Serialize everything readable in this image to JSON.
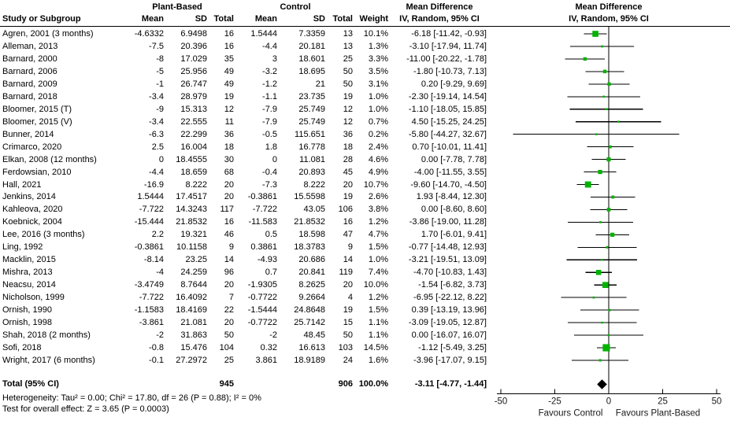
{
  "header": {
    "group1": "Plant-Based",
    "group2": "Control",
    "study_col": "Study or Subgroup",
    "mean_col": "Mean",
    "sd_col": "SD",
    "total_col": "Total",
    "weight_col": "Weight",
    "md_table_title": "Mean Difference",
    "md_table_sub": "IV, Random, 95% CI",
    "md_plot_title": "Mean Difference",
    "md_plot_sub": "IV, Random, 95% CI"
  },
  "chart_data": {
    "type": "forest_plot",
    "effect_measure": "Mean Difference, IV, Random, 95% CI",
    "axis": {
      "min": -50,
      "max": 50,
      "ticks": [
        -50,
        -25,
        0,
        25,
        50
      ],
      "tick_labels": [
        "-50",
        "-25",
        "0",
        "25",
        "50"
      ]
    },
    "favours_left": "Favours Control",
    "favours_right": "Favours Plant-Based",
    "marker_color": "#00B300",
    "line_color": "#000000",
    "diamond_color": "#000000",
    "studies": [
      {
        "name": "Agren, 2001 (3 months)",
        "m1": "-4.6332",
        "sd1": "6.9498",
        "n1": "16",
        "m2": "1.5444",
        "sd2": "7.3359",
        "n2": "13",
        "weight_label": "10.1%",
        "weight": 10.1,
        "md": -6.18,
        "lo": -11.42,
        "hi": -0.93,
        "ci_label": "-6.18 [-11.42, -0.93]"
      },
      {
        "name": "Alleman, 2013",
        "m1": "-7.5",
        "sd1": "20.396",
        "n1": "16",
        "m2": "-4.4",
        "sd2": "20.181",
        "n2": "13",
        "weight_label": "1.3%",
        "weight": 1.3,
        "md": -3.1,
        "lo": -17.94,
        "hi": 11.74,
        "ci_label": "-3.10 [-17.94, 11.74]"
      },
      {
        "name": "Barnard, 2000",
        "m1": "-8",
        "sd1": "17.029",
        "n1": "35",
        "m2": "3",
        "sd2": "18.601",
        "n2": "25",
        "weight_label": "3.3%",
        "weight": 3.3,
        "md": -11.0,
        "lo": -20.22,
        "hi": -1.78,
        "ci_label": "-11.00 [-20.22, -1.78]"
      },
      {
        "name": "Barnard, 2006",
        "m1": "-5",
        "sd1": "25.956",
        "n1": "49",
        "m2": "-3.2",
        "sd2": "18.695",
        "n2": "50",
        "weight_label": "3.5%",
        "weight": 3.5,
        "md": -1.8,
        "lo": -10.73,
        "hi": 7.13,
        "ci_label": "-1.80 [-10.73, 7.13]"
      },
      {
        "name": "Barnard, 2009",
        "m1": "-1",
        "sd1": "26.747",
        "n1": "49",
        "m2": "-1.2",
        "sd2": "21",
        "n2": "50",
        "weight_label": "3.1%",
        "weight": 3.1,
        "md": 0.2,
        "lo": -9.29,
        "hi": 9.69,
        "ci_label": "0.20 [-9.29, 9.69]"
      },
      {
        "name": "Barnard, 2018",
        "m1": "-3.4",
        "sd1": "28.979",
        "n1": "19",
        "m2": "-1.1",
        "sd2": "23.735",
        "n2": "19",
        "weight_label": "1.0%",
        "weight": 1.0,
        "md": -2.3,
        "lo": -19.14,
        "hi": 14.54,
        "ci_label": "-2.30 [-19.14, 14.54]"
      },
      {
        "name": "Bloomer, 2015 (T)",
        "m1": "-9",
        "sd1": "15.313",
        "n1": "12",
        "m2": "-7.9",
        "sd2": "25.749",
        "n2": "12",
        "weight_label": "1.0%",
        "weight": 1.0,
        "md": -1.1,
        "lo": -18.05,
        "hi": 15.85,
        "ci_label": "-1.10 [-18.05, 15.85]"
      },
      {
        "name": "Bloomer, 2015 (V)",
        "m1": "-3.4",
        "sd1": "22.555",
        "n1": "11",
        "m2": "-7.9",
        "sd2": "25.749",
        "n2": "12",
        "weight_label": "0.7%",
        "weight": 0.7,
        "md": 4.5,
        "lo": -15.25,
        "hi": 24.25,
        "ci_label": "4.50 [-15.25, 24.25]"
      },
      {
        "name": "Bunner, 2014",
        "m1": "-6.3",
        "sd1": "22.299",
        "n1": "36",
        "m2": "-0.5",
        "sd2": "115.651",
        "n2": "36",
        "weight_label": "0.2%",
        "weight": 0.2,
        "md": -5.8,
        "lo": -44.27,
        "hi": 32.67,
        "ci_label": "-5.80 [-44.27, 32.67]"
      },
      {
        "name": "Crimarco, 2020",
        "m1": "2.5",
        "sd1": "16.004",
        "n1": "18",
        "m2": "1.8",
        "sd2": "16.778",
        "n2": "18",
        "weight_label": "2.4%",
        "weight": 2.4,
        "md": 0.7,
        "lo": -10.01,
        "hi": 11.41,
        "ci_label": "0.70 [-10.01, 11.41]"
      },
      {
        "name": "Elkan, 2008 (12 months)",
        "m1": "0",
        "sd1": "18.4555",
        "n1": "30",
        "m2": "0",
        "sd2": "11.081",
        "n2": "28",
        "weight_label": "4.6%",
        "weight": 4.6,
        "md": 0.0,
        "lo": -7.78,
        "hi": 7.78,
        "ci_label": "0.00 [-7.78, 7.78]"
      },
      {
        "name": "Ferdowsian, 2010",
        "m1": "-4.4",
        "sd1": "18.659",
        "n1": "68",
        "m2": "-0.4",
        "sd2": "20.893",
        "n2": "45",
        "weight_label": "4.9%",
        "weight": 4.9,
        "md": -4.0,
        "lo": -11.55,
        "hi": 3.55,
        "ci_label": "-4.00 [-11.55, 3.55]"
      },
      {
        "name": "Hall, 2021",
        "m1": "-16.9",
        "sd1": "8.222",
        "n1": "20",
        "m2": "-7.3",
        "sd2": "8.222",
        "n2": "20",
        "weight_label": "10.7%",
        "weight": 10.7,
        "md": -9.6,
        "lo": -14.7,
        "hi": -4.5,
        "ci_label": "-9.60 [-14.70, -4.50]"
      },
      {
        "name": "Jenkins, 2014",
        "m1": "1.5444",
        "sd1": "17.4517",
        "n1": "20",
        "m2": "-0.3861",
        "sd2": "15.5598",
        "n2": "19",
        "weight_label": "2.6%",
        "weight": 2.6,
        "md": 1.93,
        "lo": -8.44,
        "hi": 12.3,
        "ci_label": "1.93 [-8.44, 12.30]"
      },
      {
        "name": "Kahleova, 2020",
        "m1": "-7.722",
        "sd1": "14.3243",
        "n1": "117",
        "m2": "-7.722",
        "sd2": "43.05",
        "n2": "106",
        "weight_label": "3.8%",
        "weight": 3.8,
        "md": 0.0,
        "lo": -8.6,
        "hi": 8.6,
        "ci_label": "0.00 [-8.60, 8.60]"
      },
      {
        "name": "Koebnick, 2004",
        "m1": "-15.444",
        "sd1": "21.8532",
        "n1": "16",
        "m2": "-11.583",
        "sd2": "21.8532",
        "n2": "16",
        "weight_label": "1.2%",
        "weight": 1.2,
        "md": -3.86,
        "lo": -19.0,
        "hi": 11.28,
        "ci_label": "-3.86 [-19.00, 11.28]"
      },
      {
        "name": "Lee, 2016 (3 months)",
        "m1": "2.2",
        "sd1": "19.321",
        "n1": "46",
        "m2": "0.5",
        "sd2": "18.598",
        "n2": "47",
        "weight_label": "4.7%",
        "weight": 4.7,
        "md": 1.7,
        "lo": -6.01,
        "hi": 9.41,
        "ci_label": "1.70 [-6.01, 9.41]"
      },
      {
        "name": "Ling, 1992",
        "m1": "-0.3861",
        "sd1": "10.1158",
        "n1": "9",
        "m2": "0.3861",
        "sd2": "18.3783",
        "n2": "9",
        "weight_label": "1.5%",
        "weight": 1.5,
        "md": -0.77,
        "lo": -14.48,
        "hi": 12.93,
        "ci_label": "-0.77 [-14.48, 12.93]"
      },
      {
        "name": "Macklin, 2015",
        "m1": "-8.14",
        "sd1": "23.25",
        "n1": "14",
        "m2": "-4.93",
        "sd2": "20.686",
        "n2": "14",
        "weight_label": "1.0%",
        "weight": 1.0,
        "md": -3.21,
        "lo": -19.51,
        "hi": 13.09,
        "ci_label": "-3.21 [-19.51, 13.09]"
      },
      {
        "name": "Mishra, 2013",
        "m1": "-4",
        "sd1": "24.259",
        "n1": "96",
        "m2": "0.7",
        "sd2": "20.841",
        "n2": "119",
        "weight_label": "7.4%",
        "weight": 7.4,
        "md": -4.7,
        "lo": -10.83,
        "hi": 1.43,
        "ci_label": "-4.70 [-10.83, 1.43]"
      },
      {
        "name": "Neacsu, 2014",
        "m1": "-3.4749",
        "sd1": "8.7644",
        "n1": "20",
        "m2": "-1.9305",
        "sd2": "8.2625",
        "n2": "20",
        "weight_label": "10.0%",
        "weight": 10.0,
        "md": -1.54,
        "lo": -6.82,
        "hi": 3.73,
        "ci_label": "-1.54 [-6.82, 3.73]"
      },
      {
        "name": "Nicholson, 1999",
        "m1": "-7.722",
        "sd1": "16.4092",
        "n1": "7",
        "m2": "-0.7722",
        "sd2": "9.2664",
        "n2": "4",
        "weight_label": "1.2%",
        "weight": 1.2,
        "md": -6.95,
        "lo": -22.12,
        "hi": 8.22,
        "ci_label": "-6.95 [-22.12, 8.22]"
      },
      {
        "name": "Ornish, 1990",
        "m1": "-1.1583",
        "sd1": "18.4169",
        "n1": "22",
        "m2": "-1.5444",
        "sd2": "24.8648",
        "n2": "19",
        "weight_label": "1.5%",
        "weight": 1.5,
        "md": 0.39,
        "lo": -13.19,
        "hi": 13.96,
        "ci_label": "0.39 [-13.19, 13.96]"
      },
      {
        "name": "Ornish, 1998",
        "m1": "-3.861",
        "sd1": "21.081",
        "n1": "20",
        "m2": "-0.7722",
        "sd2": "25.7142",
        "n2": "15",
        "weight_label": "1.1%",
        "weight": 1.1,
        "md": -3.09,
        "lo": -19.05,
        "hi": 12.87,
        "ci_label": "-3.09 [-19.05, 12.87]"
      },
      {
        "name": "Shah, 2018 (2 months)",
        "m1": "-2",
        "sd1": "31.863",
        "n1": "50",
        "m2": "-2",
        "sd2": "48.45",
        "n2": "50",
        "weight_label": "1.1%",
        "weight": 1.1,
        "md": 0.0,
        "lo": -16.07,
        "hi": 16.07,
        "ci_label": "0.00 [-16.07, 16.07]"
      },
      {
        "name": "Sofi, 2018",
        "m1": "-0.8",
        "sd1": "15.476",
        "n1": "104",
        "m2": "0.32",
        "sd2": "16.613",
        "n2": "103",
        "weight_label": "14.5%",
        "weight": 14.5,
        "md": -1.12,
        "lo": -5.49,
        "hi": 3.25,
        "ci_label": "-1.12 [-5.49, 3.25]"
      },
      {
        "name": "Wright, 2017 (6 months)",
        "m1": "-0.1",
        "sd1": "27.2972",
        "n1": "25",
        "m2": "3.861",
        "sd2": "18.9189",
        "n2": "24",
        "weight_label": "1.6%",
        "weight": 1.6,
        "md": -3.96,
        "lo": -17.07,
        "hi": 9.15,
        "ci_label": "-3.96 [-17.07, 9.15]"
      }
    ],
    "total": {
      "label": "Total (95% CI)",
      "n1": "945",
      "n2": "906",
      "weight_label": "100.0%",
      "md": -3.11,
      "lo": -4.77,
      "hi": -1.44,
      "ci_label": "-3.11 [-4.77, -1.44]"
    },
    "heterogeneity": "Heterogeneity: Tau² = 0.00; Chi² = 17.80, df = 26 (P = 0.88); I² = 0%",
    "overall_test": "Test for overall effect: Z = 3.65 (P = 0.0003)"
  }
}
